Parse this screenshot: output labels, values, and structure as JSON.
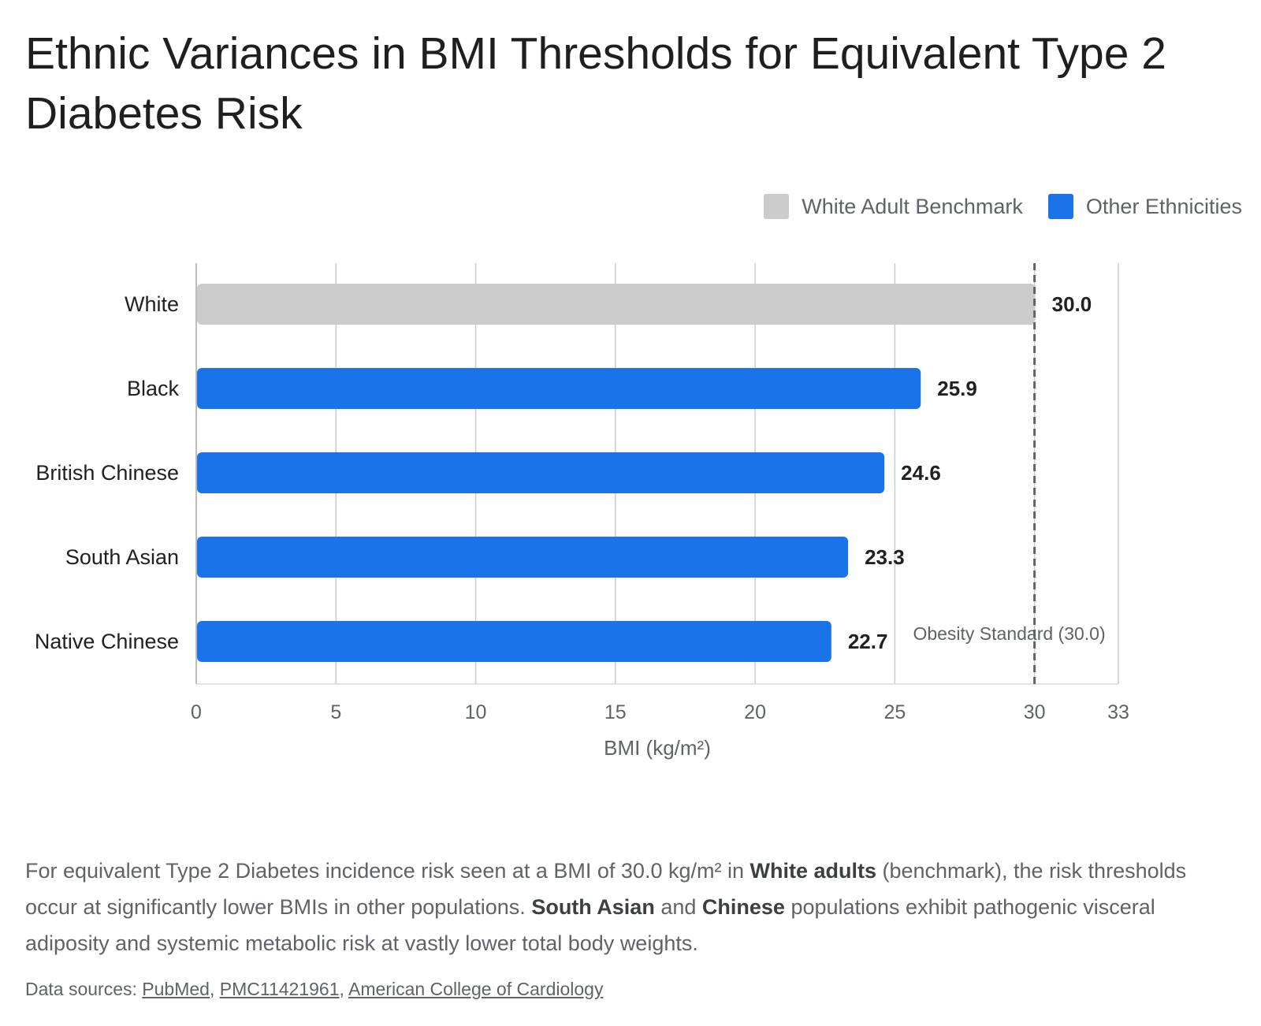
{
  "title": "Ethnic Variances in BMI Thresholds for Equivalent Type 2 Diabetes Risk",
  "legend": [
    {
      "label": "White Adult Benchmark",
      "color": "#cccccc"
    },
    {
      "label": "Other Ethnicities",
      "color": "#1a73e8"
    }
  ],
  "chart_data": {
    "type": "bar",
    "orientation": "horizontal",
    "categories": [
      "White",
      "Black",
      "British Chinese",
      "South Asian",
      "Native Chinese"
    ],
    "values": [
      30.0,
      25.9,
      24.6,
      23.3,
      22.7
    ],
    "value_labels": [
      "30.0",
      "25.9",
      "24.6",
      "23.3",
      "22.7"
    ],
    "bar_colors": [
      "#cccccc",
      "#1a73e8",
      "#1a73e8",
      "#1a73e8",
      "#1a73e8"
    ],
    "xlabel": "BMI (kg/m²)",
    "ylabel": "",
    "xlim": [
      0,
      33
    ],
    "xticks": [
      0,
      5,
      10,
      15,
      20,
      25,
      30,
      33
    ],
    "grid": true,
    "legend_position": "top-right",
    "reference_line": {
      "value": 30.0,
      "label": "Obesity Standard (30.0)",
      "style": "dashed"
    }
  },
  "description": {
    "p1": "For equivalent Type 2 Diabetes incidence risk seen at a BMI of 30.0 kg/m² in ",
    "b1": "White adults",
    "p2": " (benchmark), the risk thresholds occur at significantly lower BMIs in other populations. ",
    "b2": "South Asian",
    "p3": " and ",
    "b3": "Chinese",
    "p4": " populations exhibit pathogenic visceral adiposity and systemic metabolic risk at vastly lower total body weights."
  },
  "sources": {
    "prefix": "Data sources: ",
    "links": [
      "PubMed",
      "PMC11421961",
      "American College of Cardiology"
    ],
    "separator": ", "
  }
}
